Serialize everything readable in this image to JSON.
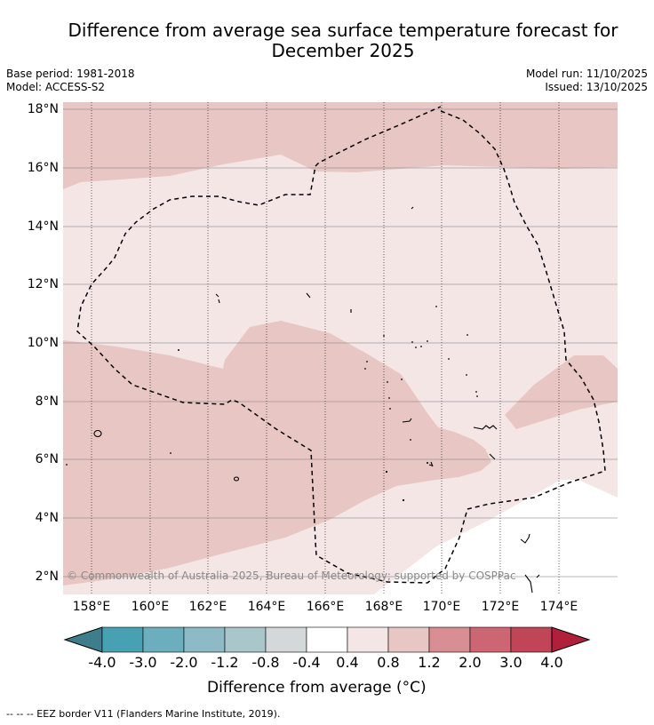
{
  "header": {
    "title_line1": "Difference from average sea surface temperature forecast for",
    "title_line2": "December 2025",
    "base_period": "Base period: 1981-2018",
    "model": "Model: ACCESS-S2",
    "model_run": "Model run: 11/10/2025",
    "issued": "Issued: 13/10/2025"
  },
  "map": {
    "lat_labels": [
      "18°N",
      "16°N",
      "14°N",
      "12°N",
      "10°N",
      "8°N",
      "6°N",
      "4°N",
      "2°N"
    ],
    "lon_labels": [
      "158°E",
      "160°E",
      "162°E",
      "164°E",
      "166°E",
      "168°E",
      "170°E",
      "172°E",
      "174°E"
    ],
    "copyright": "© Commonwealth of Australia 2025, Bureau of Meteorology; supported by COSPPac"
  },
  "colorbar": {
    "labels": [
      "-4.0",
      "-3.0",
      "-2.0",
      "-1.2",
      "-0.8",
      "-0.4",
      "0.4",
      "0.8",
      "1.2",
      "2.0",
      "3.0",
      "4.0"
    ],
    "colors": [
      "#47a1b3",
      "#6bafbf",
      "#8ebac5",
      "#a9c6cb",
      "#d3d9db",
      "#ffffff",
      "#f4e6e5",
      "#e8c6c3",
      "#d98e94",
      "#cc6672",
      "#c04657"
    ],
    "under_color": "#3e7e8c",
    "over_color": "#b0203a",
    "title": "Difference from average (°C)"
  },
  "legend": {
    "eez_note": "--  --  -- EEZ border V11 (Flanders Marine Institute, 2019)."
  }
}
